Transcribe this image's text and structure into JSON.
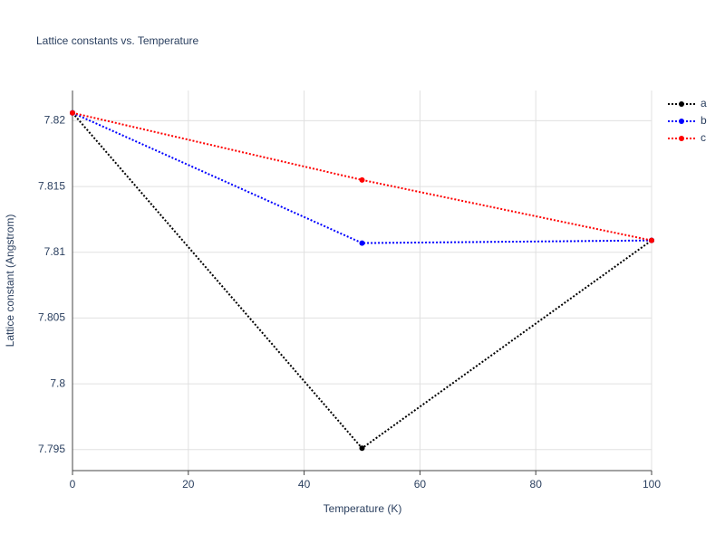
{
  "chart_data": {
    "type": "line",
    "title": "Lattice constants vs. Temperature",
    "x_label": "Temperature (K)",
    "y_label": "Lattice constant (Angstrom)",
    "x": [
      0,
      50,
      100
    ],
    "series": [
      {
        "name": "a",
        "color": "#000000",
        "values": [
          7.8206,
          7.7951,
          7.8109
        ]
      },
      {
        "name": "b",
        "color": "#0000ff",
        "values": [
          7.8206,
          7.8107,
          7.8109
        ]
      },
      {
        "name": "c",
        "color": "#ff0000",
        "values": [
          7.8206,
          7.8155,
          7.8109
        ]
      }
    ],
    "xlim": [
      0,
      100
    ],
    "xticks": [
      0,
      20,
      40,
      60,
      80,
      100
    ],
    "ylim": [
      7.7934,
      7.8223
    ],
    "yticks": [
      7.795,
      7.8,
      7.805,
      7.81,
      7.815,
      7.82
    ],
    "grid": true,
    "legend": "top-right"
  }
}
